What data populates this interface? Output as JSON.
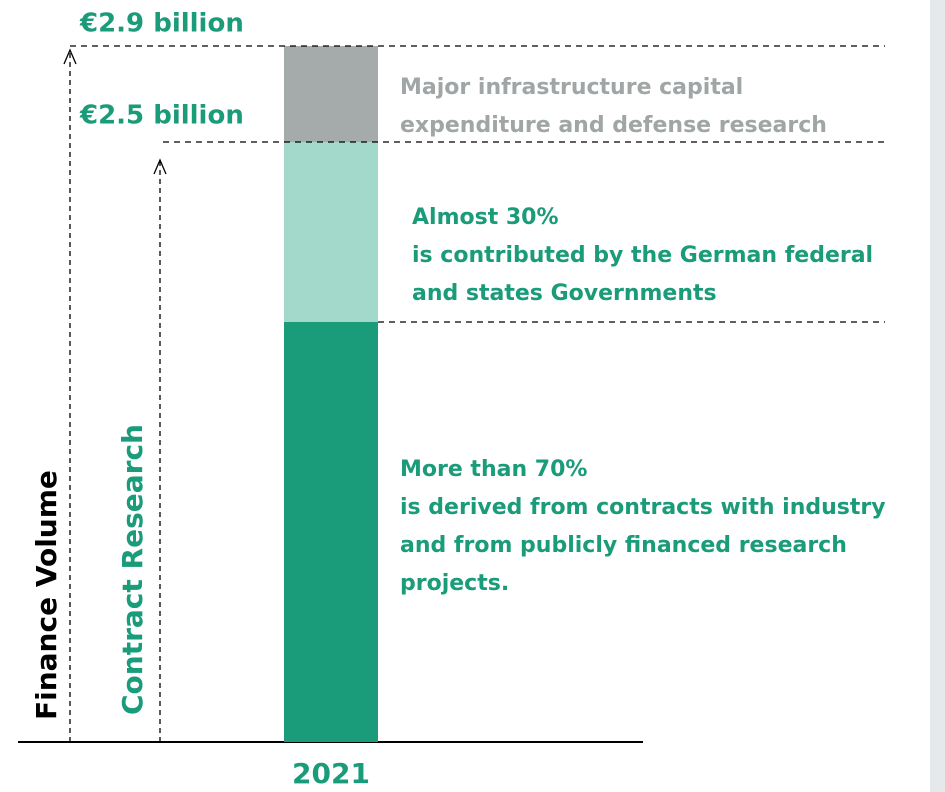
{
  "chart_data": {
    "type": "stacked-bar",
    "categories": [
      "2021"
    ],
    "series": [
      {
        "color": "#1a9b79",
        "values": [
          1.75
        ]
      },
      {
        "color": "#a3d9cb",
        "values": [
          0.75
        ]
      },
      {
        "color": "#a5abaa",
        "values": [
          0.4
        ]
      }
    ],
    "segment_labels": [
      [
        "More than 70%",
        "is derived from contracts with industry",
        "and from publicly financed research",
        "projects."
      ],
      [
        "Almost 30%",
        "is contributed by the German federal",
        "and states Governments"
      ],
      [
        "Major infrastructure capital",
        "expenditure and defense research"
      ]
    ],
    "totals": [
      "€2.5 billion",
      "€2.9 billion"
    ],
    "axis_labels": [
      "Finance Volume",
      "Contract Research"
    ]
  }
}
